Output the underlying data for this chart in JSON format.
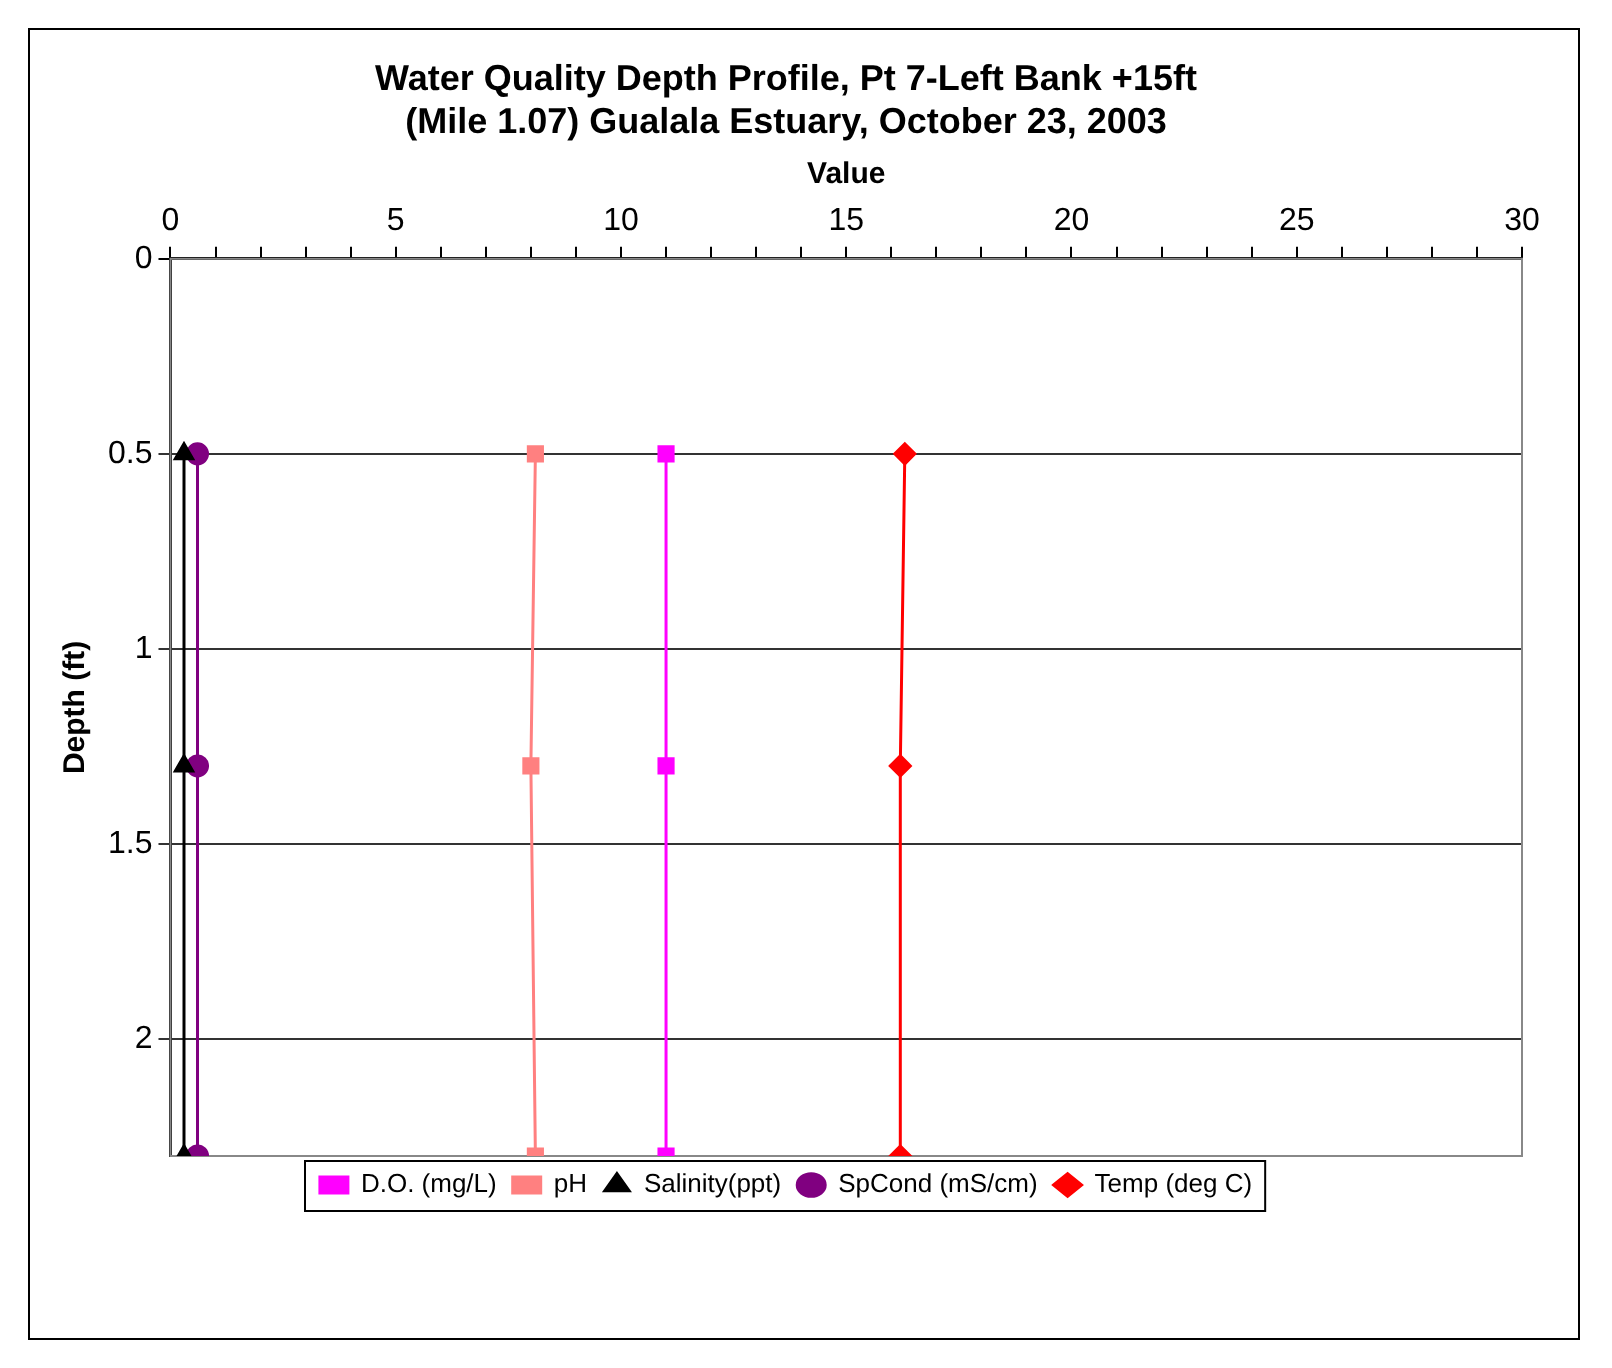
{
  "chart_data": {
    "type": "line",
    "title": "Water Quality Depth Profile, Pt 7-Left Bank +15ft\n(Mile 1.07) Gualala Estuary, October 23, 2003",
    "xlabel": "Value",
    "ylabel": "Depth (ft)",
    "xlim": [
      0,
      30
    ],
    "xticks": [
      0,
      {
        "value": 1,
        "label": null
      },
      {
        "value": 2,
        "label": null
      },
      {
        "value": 3,
        "label": null
      },
      {
        "value": 4,
        "label": null
      },
      5,
      {
        "value": 6,
        "label": null
      },
      {
        "value": 7,
        "label": null
      },
      {
        "value": 8,
        "label": null
      },
      {
        "value": 9,
        "label": null
      },
      10,
      {
        "value": 11,
        "label": null
      },
      {
        "value": 12,
        "label": null
      },
      {
        "value": 13,
        "label": null
      },
      {
        "value": 14,
        "label": null
      },
      15,
      {
        "value": 16,
        "label": null
      },
      {
        "value": 17,
        "label": null
      },
      {
        "value": 18,
        "label": null
      },
      {
        "value": 19,
        "label": null
      },
      20,
      {
        "value": 21,
        "label": null
      },
      {
        "value": 22,
        "label": null
      },
      {
        "value": 23,
        "label": null
      },
      {
        "value": 24,
        "label": null
      },
      25,
      {
        "value": 26,
        "label": null
      },
      {
        "value": 27,
        "label": null
      },
      {
        "value": 28,
        "label": null
      },
      {
        "value": 29,
        "label": null
      },
      30
    ],
    "ylim": [
      2.3,
      0
    ],
    "yticks": [
      0,
      0.5,
      1,
      1.5,
      2
    ],
    "grid": "y",
    "legend": "bottom",
    "series": [
      {
        "name": "D.O. (mg/L)",
        "color": "#ff00ff",
        "marker": "square",
        "x": [
          11.0,
          11.0,
          11.0
        ],
        "values": [
          0.5,
          1.3,
          2.3
        ]
      },
      {
        "name": "pH",
        "color": "#ff8080",
        "marker": "square",
        "x": [
          8.1,
          8.0,
          8.1
        ],
        "values": [
          0.5,
          1.3,
          2.3
        ]
      },
      {
        "name": "Salinity(ppt)",
        "color": "#000000",
        "marker": "triangle",
        "x": [
          0.3,
          0.3,
          0.3
        ],
        "values": [
          0.5,
          1.3,
          2.3
        ]
      },
      {
        "name": "SpCond (mS/cm)",
        "color": "#800080",
        "marker": "circle",
        "x": [
          0.6,
          0.6,
          0.6
        ],
        "values": [
          0.5,
          1.3,
          2.3
        ]
      },
      {
        "name": "Temp (deg C)",
        "color": "#ff0000",
        "marker": "diamond",
        "x": [
          16.3,
          16.2,
          16.2
        ],
        "values": [
          0.5,
          1.3,
          2.3
        ]
      }
    ]
  }
}
